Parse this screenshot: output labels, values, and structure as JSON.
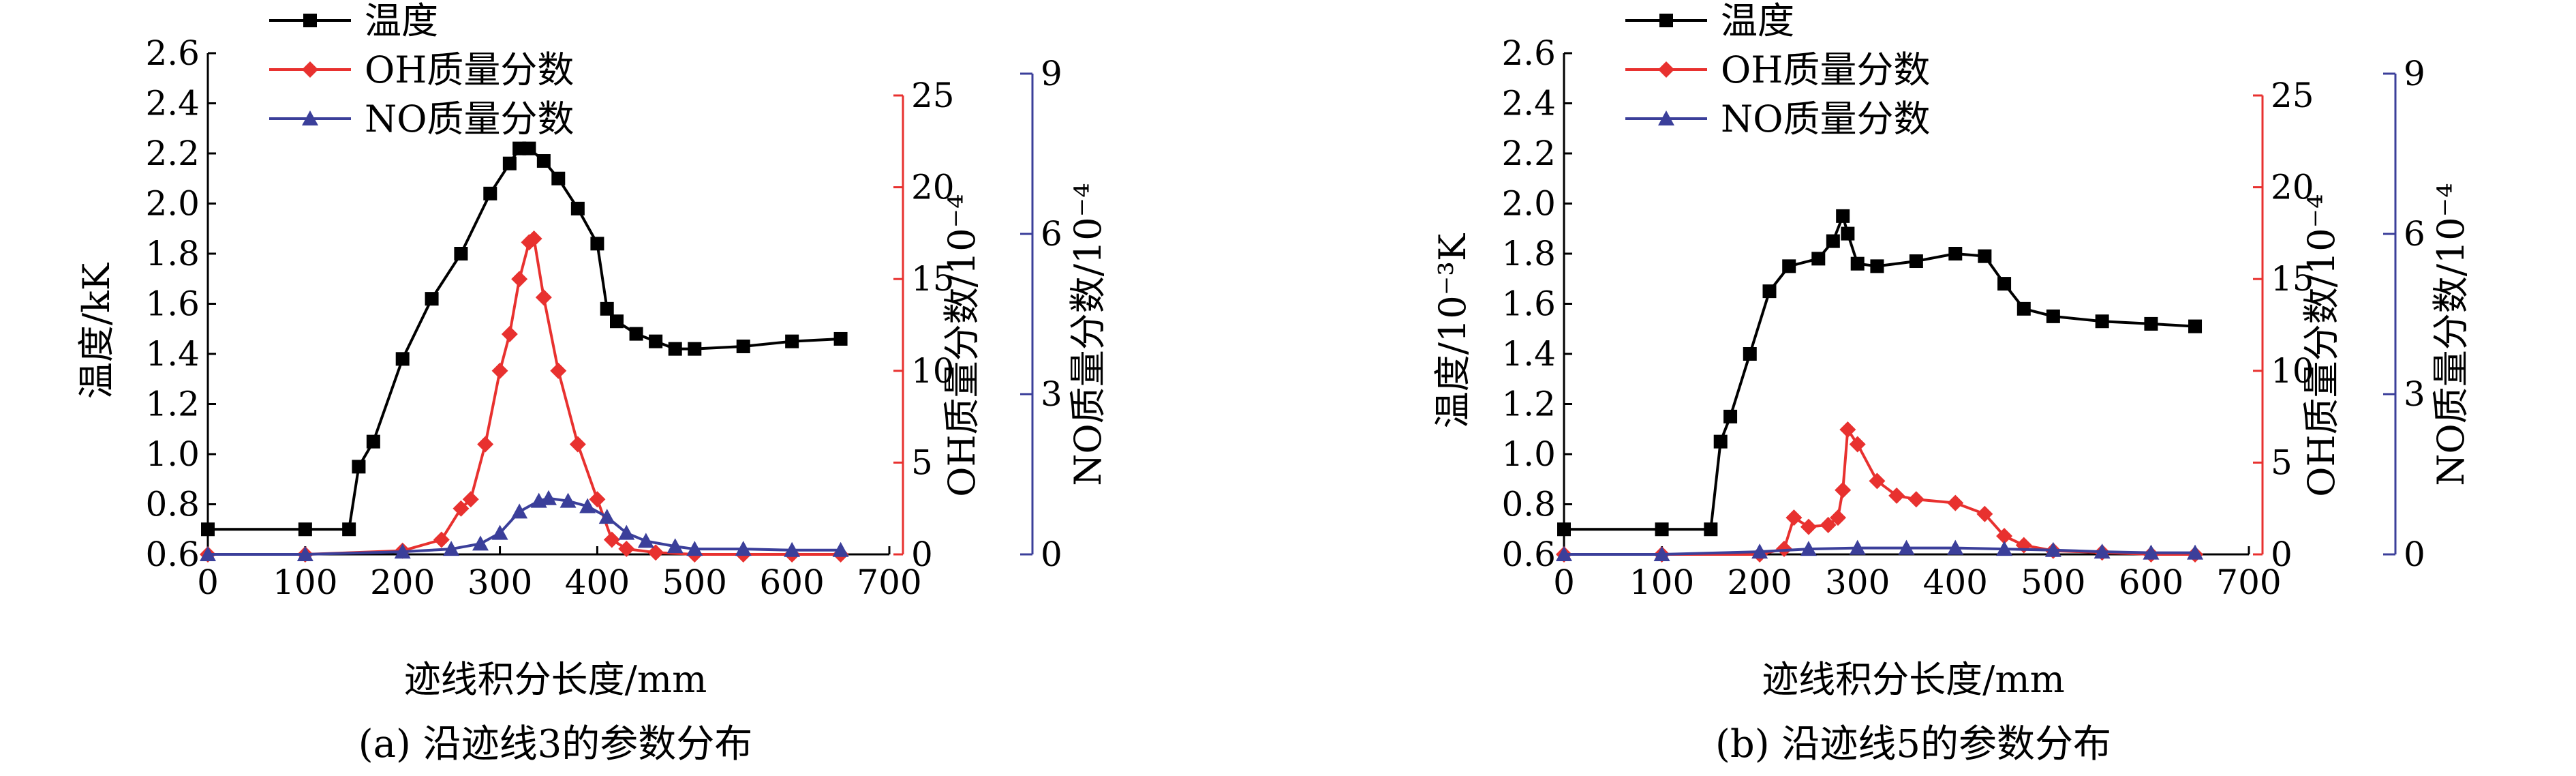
{
  "chart_data": [
    {
      "type": "line",
      "caption": "(a) 沿迹线3的参数分布",
      "xlabel": "迹线积分长度/mm",
      "xlim": [
        0,
        700
      ],
      "xticks": [
        "0",
        "100",
        "200",
        "300",
        "400",
        "500",
        "600",
        "700"
      ],
      "axes": [
        {
          "id": "temp",
          "label": "温度/kK",
          "ylim": [
            0.6,
            2.6
          ],
          "ticks": [
            "0.6",
            "0.8",
            "1.0",
            "1.2",
            "1.4",
            "1.6",
            "1.8",
            "2.0",
            "2.2",
            "2.4",
            "2.6"
          ],
          "color": "#000000"
        },
        {
          "id": "oh",
          "label": "OH质量分数/10⁻⁴",
          "ylim": [
            0,
            25
          ],
          "ticks": [
            "0",
            "5",
            "10",
            "15",
            "20",
            "25"
          ],
          "color": "#e8312f"
        },
        {
          "id": "no",
          "label": "NO质量分数/10⁻⁴",
          "ylim": [
            0,
            9
          ],
          "ticks": [
            "0",
            "3",
            "6",
            "9"
          ],
          "color": "#3b3f9a"
        }
      ],
      "series": [
        {
          "name": "温度",
          "axis": "temp",
          "color": "#000000",
          "marker": "square",
          "x": [
            0,
            100,
            145,
            155,
            170,
            200,
            230,
            260,
            290,
            310,
            320,
            330,
            345,
            360,
            380,
            400,
            410,
            420,
            440,
            460,
            480,
            500,
            550,
            600,
            650
          ],
          "y": [
            0.7,
            0.7,
            0.7,
            0.95,
            1.05,
            1.38,
            1.62,
            1.8,
            2.04,
            2.16,
            2.22,
            2.22,
            2.17,
            2.1,
            1.98,
            1.84,
            1.58,
            1.53,
            1.48,
            1.45,
            1.42,
            1.42,
            1.43,
            1.45,
            1.46
          ]
        },
        {
          "name": "OH质量分数",
          "axis": "oh",
          "color": "#e8312f",
          "marker": "diamond",
          "x": [
            0,
            100,
            200,
            240,
            260,
            270,
            285,
            300,
            310,
            320,
            330,
            335,
            345,
            360,
            380,
            400,
            415,
            430,
            460,
            500,
            550,
            600,
            650
          ],
          "y": [
            0,
            0,
            0.2,
            0.8,
            2.5,
            3.0,
            6.0,
            10.0,
            12.0,
            15.0,
            17.0,
            17.2,
            14.0,
            10.0,
            6.0,
            3.0,
            0.8,
            0.3,
            0.1,
            0,
            0,
            0,
            0
          ]
        },
        {
          "name": "NO质量分数",
          "axis": "no",
          "color": "#3b3f9a",
          "marker": "triangle",
          "x": [
            0,
            100,
            200,
            250,
            280,
            300,
            320,
            340,
            350,
            370,
            390,
            410,
            430,
            450,
            480,
            500,
            550,
            600,
            650
          ],
          "y": [
            0,
            0,
            0.05,
            0.1,
            0.2,
            0.4,
            0.8,
            1.0,
            1.05,
            1.0,
            0.9,
            0.7,
            0.4,
            0.25,
            0.15,
            0.1,
            0.1,
            0.08,
            0.08
          ]
        }
      ]
    },
    {
      "type": "line",
      "caption": "(b) 沿迹线5的参数分布",
      "xlabel": "迹线积分长度/mm",
      "xlim": [
        0,
        700
      ],
      "xticks": [
        "0",
        "100",
        "200",
        "300",
        "400",
        "500",
        "600",
        "700"
      ],
      "axes": [
        {
          "id": "temp",
          "label": "温度/10⁻³K",
          "ylim": [
            0.6,
            2.6
          ],
          "ticks": [
            "0.6",
            "0.8",
            "1.0",
            "1.2",
            "1.4",
            "1.6",
            "1.8",
            "2.0",
            "2.2",
            "2.4",
            "2.6"
          ],
          "color": "#000000"
        },
        {
          "id": "oh",
          "label": "OH质量分数/10⁻⁴",
          "ylim": [
            0,
            25
          ],
          "ticks": [
            "0",
            "5",
            "10",
            "15",
            "20",
            "25"
          ],
          "color": "#e8312f"
        },
        {
          "id": "no",
          "label": "NO质量分数/10⁻⁴",
          "ylim": [
            0,
            9
          ],
          "ticks": [
            "0",
            "3",
            "6",
            "9"
          ],
          "color": "#3b3f9a"
        }
      ],
      "series": [
        {
          "name": "温度",
          "axis": "temp",
          "color": "#000000",
          "marker": "square",
          "x": [
            0,
            100,
            150,
            160,
            170,
            190,
            210,
            230,
            260,
            275,
            285,
            290,
            300,
            320,
            360,
            400,
            430,
            450,
            470,
            500,
            550,
            600,
            645
          ],
          "y": [
            0.7,
            0.7,
            0.7,
            1.05,
            1.15,
            1.4,
            1.65,
            1.75,
            1.78,
            1.85,
            1.95,
            1.88,
            1.76,
            1.75,
            1.77,
            1.8,
            1.79,
            1.68,
            1.58,
            1.55,
            1.53,
            1.52,
            1.51
          ]
        },
        {
          "name": "OH质量分数",
          "axis": "oh",
          "color": "#e8312f",
          "marker": "diamond",
          "x": [
            0,
            100,
            200,
            225,
            235,
            250,
            270,
            280,
            285,
            290,
            300,
            320,
            340,
            360,
            400,
            430,
            450,
            470,
            500,
            550,
            600,
            645
          ],
          "y": [
            0,
            0,
            0,
            0.3,
            2.0,
            1.5,
            1.6,
            2.0,
            3.5,
            6.8,
            6.0,
            4.0,
            3.2,
            3.0,
            2.8,
            2.2,
            1.0,
            0.5,
            0.2,
            0.1,
            0,
            0
          ]
        },
        {
          "name": "NO质量分数",
          "axis": "no",
          "color": "#3b3f9a",
          "marker": "triangle",
          "x": [
            0,
            100,
            200,
            250,
            300,
            350,
            400,
            450,
            500,
            550,
            600,
            645
          ],
          "y": [
            0,
            0,
            0.05,
            0.1,
            0.12,
            0.12,
            0.12,
            0.1,
            0.08,
            0.05,
            0.03,
            0.03
          ]
        }
      ]
    }
  ]
}
